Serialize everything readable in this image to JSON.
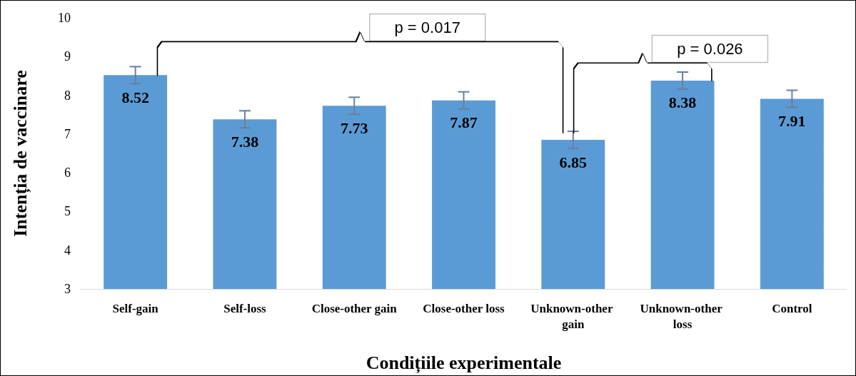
{
  "chart_data": {
    "type": "bar",
    "xlabel": "Condițiile experimentale",
    "ylabel": "Intenția de vaccinare",
    "categories": [
      "Self-gain",
      "Self-loss",
      "Close-other gain",
      "Close-other loss",
      "Unknown-other gain",
      "Unknown-other loss",
      "Control"
    ],
    "values": [
      8.52,
      7.38,
      7.73,
      7.87,
      6.85,
      8.38,
      7.91
    ],
    "errors": [
      0.22,
      0.22,
      0.22,
      0.22,
      0.22,
      0.22,
      0.22
    ],
    "color": "#5b9bd5",
    "data_labels": true,
    "grid": false,
    "ylim": [
      3,
      10
    ],
    "yticks": [
      3,
      4,
      5,
      6,
      7,
      8,
      9,
      10
    ],
    "annotations": [
      "p = 0.017",
      "p = 0.026"
    ]
  }
}
